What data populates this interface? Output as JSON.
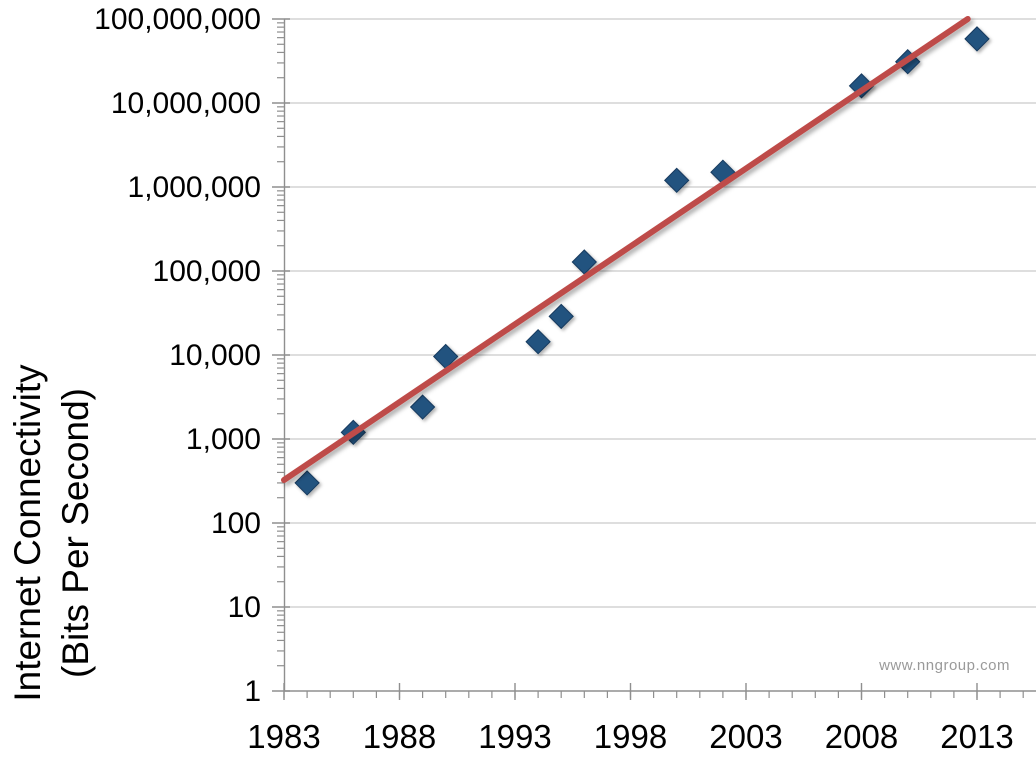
{
  "chart_data": {
    "type": "scatter",
    "title": "",
    "ylabel_line1": "Internet Connectivity",
    "ylabel_line2": "(Bits Per Second)",
    "xlabel": "",
    "y_scale": "log",
    "y_axis_ticks": [
      "1",
      "10",
      "100",
      "1,000",
      "10,000",
      "100,000",
      "1,000,000",
      "10,000,000",
      "100,000,000"
    ],
    "y_range": [
      1,
      100000000
    ],
    "x_axis_ticks": [
      1983,
      1988,
      1993,
      1998,
      2003,
      2008,
      2013
    ],
    "x_range": [
      1983,
      2015.5
    ],
    "x_minor_tick_step_years": 1,
    "grid": "horizontal-major-only",
    "legend": "none",
    "points": [
      {
        "year": 1984,
        "bps": 300
      },
      {
        "year": 1986,
        "bps": 1200
      },
      {
        "year": 1989,
        "bps": 2400
      },
      {
        "year": 1990,
        "bps": 9600
      },
      {
        "year": 1994,
        "bps": 14400
      },
      {
        "year": 1995,
        "bps": 28800
      },
      {
        "year": 1996,
        "bps": 128000
      },
      {
        "year": 2000,
        "bps": 1200000
      },
      {
        "year": 2002,
        "bps": 1500000
      },
      {
        "year": 2008,
        "bps": 16000000
      },
      {
        "year": 2010,
        "bps": 31000000
      },
      {
        "year": 2013,
        "bps": 58000000
      }
    ],
    "trendline": {
      "start": {
        "year": 1983.0,
        "bps": 325
      },
      "end": {
        "year": 2012.6,
        "bps": 100000000
      }
    },
    "watermark": "www.nngroup.com",
    "colors": {
      "marker_fill": "#24527F",
      "marker_border": "#173A5E",
      "trendline": "#BE4B48",
      "gridline": "#C9C9C9",
      "axis": "#8F8F8F",
      "tick": "#8F8F8F",
      "label": "#000000",
      "watermark": "#9A9A9A",
      "background": "#FFFFFF"
    }
  }
}
